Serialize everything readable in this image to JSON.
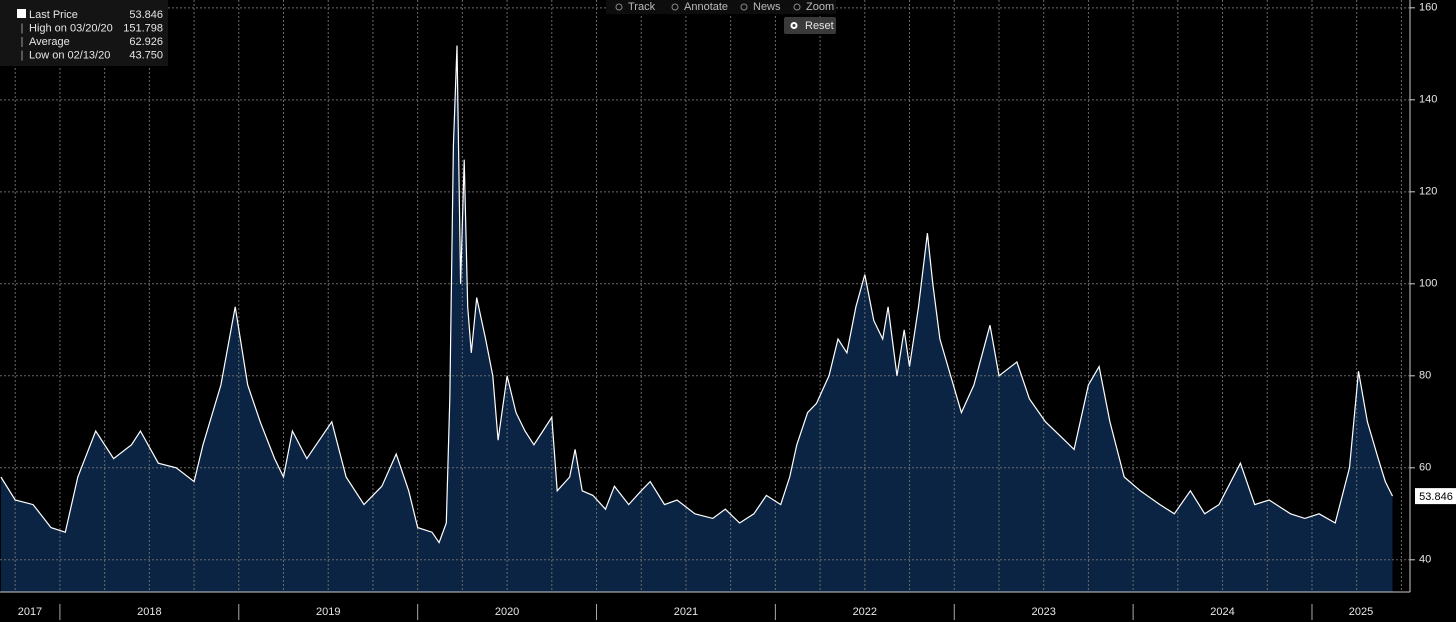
{
  "toolbar": [
    "Track",
    "Annotate",
    "News",
    "Zoom"
  ],
  "reset": "Reset",
  "chart_data": {
    "type": "area",
    "stats": {
      "labels": [
        "Last Price",
        "High on 03/20/20",
        "Average",
        "Low on 02/13/20"
      ],
      "values": [
        53.846,
        151.798,
        62.926,
        43.75
      ],
      "value_labels": [
        "53.846",
        "151.798",
        "62.926",
        "43.750"
      ]
    },
    "x": [
      2017.67,
      2017.75,
      2017.85,
      2017.95,
      2018.03,
      2018.1,
      2018.2,
      2018.3,
      2018.4,
      2018.45,
      2018.55,
      2018.65,
      2018.75,
      2018.8,
      2018.9,
      2018.98,
      2019.05,
      2019.12,
      2019.2,
      2019.25,
      2019.3,
      2019.38,
      2019.45,
      2019.52,
      2019.6,
      2019.7,
      2019.8,
      2019.88,
      2019.95,
      2020.0,
      2020.08,
      2020.12,
      2020.16,
      2020.18,
      2020.2,
      2020.22,
      2020.24,
      2020.26,
      2020.28,
      2020.3,
      2020.33,
      2020.38,
      2020.42,
      2020.45,
      2020.5,
      2020.55,
      2020.6,
      2020.65,
      2020.7,
      2020.75,
      2020.78,
      2020.85,
      2020.88,
      2020.92,
      2020.98,
      2021.05,
      2021.1,
      2021.18,
      2021.25,
      2021.3,
      2021.38,
      2021.45,
      2021.55,
      2021.65,
      2021.72,
      2021.8,
      2021.88,
      2021.95,
      2022.03,
      2022.08,
      2022.12,
      2022.18,
      2022.23,
      2022.3,
      2022.35,
      2022.4,
      2022.45,
      2022.5,
      2022.55,
      2022.6,
      2022.63,
      2022.68,
      2022.72,
      2022.75,
      2022.8,
      2022.85,
      2022.88,
      2022.92,
      2023.04,
      2023.11,
      2023.2,
      2023.25,
      2023.35,
      2023.42,
      2023.51,
      2023.59,
      2023.67,
      2023.75,
      2023.81,
      2023.87,
      2023.95,
      2024.04,
      2024.15,
      2024.23,
      2024.32,
      2024.4,
      2024.48,
      2024.6,
      2024.68,
      2024.76,
      2024.88,
      2024.96,
      2025.04,
      2025.13,
      2025.21,
      2025.26,
      2025.31,
      2025.37,
      2025.41,
      2025.45
    ],
    "series": [
      {
        "color": "#ffffff",
        "fill": "#0b2444",
        "values": [
          58,
          53,
          52,
          47,
          46,
          58,
          68,
          62,
          65,
          68,
          61,
          60,
          57,
          65,
          78,
          95,
          78,
          70,
          62,
          58,
          68,
          62,
          66,
          70,
          58,
          52,
          56,
          63,
          55,
          47,
          46,
          43.75,
          48,
          75,
          130,
          151.798,
          100,
          127,
          95,
          85,
          97,
          88,
          80,
          66,
          80,
          72,
          68,
          65,
          68,
          71,
          55,
          58,
          64,
          55,
          54,
          51,
          56,
          52,
          55,
          57,
          52,
          53,
          50,
          49,
          51,
          48,
          50,
          54,
          52,
          58,
          65,
          72,
          74,
          80,
          88,
          85,
          95,
          102,
          92,
          88,
          95,
          80,
          90,
          82,
          95,
          111,
          100,
          88,
          72,
          78,
          91,
          80,
          83,
          75,
          70,
          67,
          64,
          78,
          82,
          70,
          58,
          55,
          52,
          50,
          55,
          50,
          52,
          61,
          52,
          53,
          50,
          49,
          50,
          48,
          60,
          81,
          70,
          62,
          57,
          53.846
        ]
      }
    ],
    "xlim": [
      2017.665,
      2025.548
    ],
    "xticks": [
      2017,
      2018,
      2019,
      2020,
      2021,
      2022,
      2023,
      2024,
      2025
    ],
    "ylim": [
      33,
      161.7
    ],
    "yticks": [
      40,
      60,
      80,
      100,
      120,
      140,
      160
    ],
    "grid": true
  }
}
